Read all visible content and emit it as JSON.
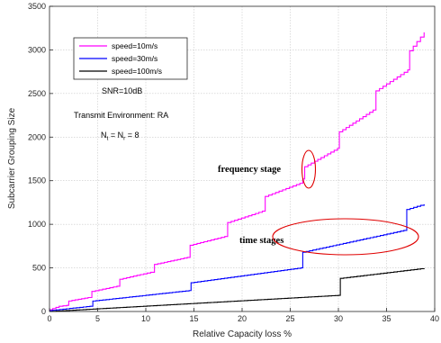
{
  "chart_data": {
    "type": "line",
    "xlabel": "Relative Capacity loss %",
    "ylabel": "Subcarrier Grouping Size",
    "xlim": [
      0,
      40
    ],
    "ylim": [
      0,
      3500
    ],
    "xticks": [
      0,
      5,
      10,
      15,
      20,
      25,
      30,
      35,
      40
    ],
    "yticks": [
      0,
      500,
      1000,
      1500,
      2000,
      2500,
      3000,
      3500
    ],
    "grid": true,
    "legend_position": "top-left",
    "series": [
      {
        "name": "speed=10m/s",
        "color": "#ff00ff",
        "points": [
          [
            0,
            20
          ],
          [
            1.0,
            60
          ],
          [
            1.8,
            70
          ],
          [
            2.0,
            120
          ],
          [
            4.0,
            160
          ],
          [
            4.4,
            230
          ],
          [
            7.0,
            290
          ],
          [
            7.3,
            370
          ],
          [
            10.5,
            450
          ],
          [
            10.9,
            540
          ],
          [
            14.3,
            620
          ],
          [
            14.6,
            760
          ],
          [
            18.2,
            860
          ],
          [
            18.5,
            1020
          ],
          [
            22.1,
            1150
          ],
          [
            22.4,
            1320
          ],
          [
            26.0,
            1470
          ],
          [
            26.3,
            1520
          ],
          [
            26.5,
            1660
          ],
          [
            29.9,
            1870
          ],
          [
            30.1,
            2060
          ],
          [
            33.6,
            2310
          ],
          [
            33.9,
            2530
          ],
          [
            37.2,
            2770
          ],
          [
            37.4,
            2990
          ],
          [
            38.9,
            3200
          ]
        ]
      },
      {
        "name": "speed=30m/s",
        "color": "#0000ff",
        "points": [
          [
            0,
            10
          ],
          [
            4.2,
            60
          ],
          [
            4.5,
            120
          ],
          [
            14.5,
            240
          ],
          [
            14.7,
            330
          ],
          [
            26.1,
            500
          ],
          [
            26.3,
            680
          ],
          [
            36.8,
            930
          ],
          [
            37.1,
            1170
          ],
          [
            38.9,
            1230
          ]
        ]
      },
      {
        "name": "speed=100m/s",
        "color": "#000000",
        "points": [
          [
            0,
            0
          ],
          [
            30.0,
            185
          ],
          [
            30.2,
            380
          ],
          [
            38.9,
            495
          ]
        ]
      }
    ],
    "annotations": {
      "snr": "SNR=10dB",
      "environment": "Transmit Environment: RA",
      "antenna_nt": "N",
      "antenna_nt_sub": "t",
      "antenna_eq": " = N",
      "antenna_nr_sub": "r",
      "antenna_value": " = 8",
      "frequency_stage": "frequency stage",
      "time_stages": "time stages"
    }
  }
}
